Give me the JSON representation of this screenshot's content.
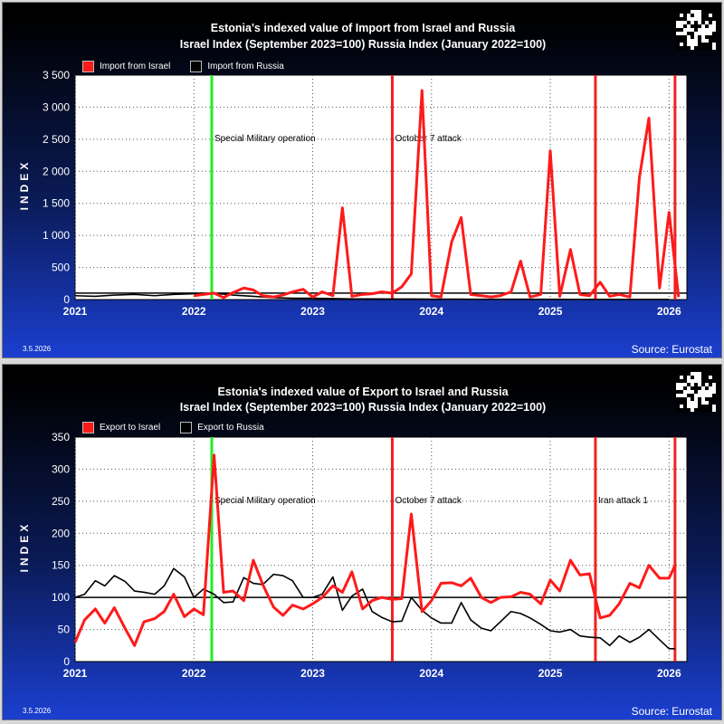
{
  "charts": [
    {
      "title1": "Estonia's indexed value of Import from Israel and Russia",
      "title2": "Israel Index (September 2023=100) Russia Index (January 2022=100)",
      "legend": [
        "Import from Israel",
        "Import from Russia"
      ],
      "ylabel": "INDEX",
      "date": "3.5.2026",
      "source": "Source: Eurostat"
    },
    {
      "title1": "Estonia's indexed value of Export to Israel and Russia",
      "title2": "Israel Index (September 2023=100) Russia Index (January 2022=100)",
      "legend": [
        "Export to Israel",
        "Export to Russia"
      ],
      "ylabel": "INDEX",
      "date": "3.5.2026",
      "source": "Source: Eurostat"
    }
  ],
  "chart_data": [
    {
      "type": "line",
      "title": "Estonia's indexed value of Import from Israel and Russia",
      "ylabel": "INDEX",
      "xlim": [
        2021.0,
        2026.15
      ],
      "ylim": [
        0,
        3500
      ],
      "yticks": [
        "0",
        "500",
        "1 000",
        "1 500",
        "2 000",
        "2 500",
        "3 000",
        "3 500"
      ],
      "ytick_values": [
        0,
        500,
        1000,
        1500,
        2000,
        2500,
        3000,
        3500
      ],
      "xticks": [
        "2021",
        "2022",
        "2023",
        "2024",
        "2025",
        "2026"
      ],
      "grid": true,
      "legend": "top-left",
      "reference_line": 100,
      "events": [
        {
          "x": 2022.15,
          "label": "Special Military operation",
          "color": "#22ee22"
        },
        {
          "x": 2023.67,
          "label": "October 7 attack",
          "color": "#ee2222"
        },
        {
          "x": 2025.38,
          "label": "",
          "color": "#ee2222"
        },
        {
          "x": 2026.05,
          "label": "",
          "color": "#ee2222"
        }
      ],
      "series": [
        {
          "name": "Import from Israel",
          "color": "#ff1a1a",
          "x": [
            2022.0,
            2022.08,
            2022.17,
            2022.25,
            2022.33,
            2022.42,
            2022.5,
            2022.58,
            2022.67,
            2022.75,
            2022.83,
            2022.92,
            2023.0,
            2023.08,
            2023.17,
            2023.25,
            2023.33,
            2023.42,
            2023.5,
            2023.58,
            2023.67,
            2023.75,
            2023.83,
            2023.92,
            2024.0,
            2024.08,
            2024.17,
            2024.25,
            2024.33,
            2024.42,
            2024.5,
            2024.58,
            2024.67,
            2024.75,
            2024.83,
            2024.92,
            2025.0,
            2025.08,
            2025.17,
            2025.25,
            2025.33,
            2025.42,
            2025.5,
            2025.58,
            2025.67,
            2025.75,
            2025.83,
            2025.92,
            2026.0,
            2026.08
          ],
          "y": [
            60,
            80,
            100,
            30,
            110,
            180,
            150,
            60,
            40,
            70,
            120,
            160,
            40,
            120,
            60,
            1430,
            50,
            80,
            90,
            120,
            100,
            200,
            400,
            3260,
            60,
            40,
            900,
            1280,
            80,
            60,
            40,
            60,
            120,
            600,
            40,
            80,
            2320,
            50,
            780,
            80,
            60,
            270,
            50,
            80,
            40,
            1900,
            2830,
            180,
            1360,
            40
          ]
        },
        {
          "name": "Import from Russia",
          "color": "#000000",
          "x": [
            2021.0,
            2021.17,
            2021.33,
            2021.5,
            2021.67,
            2021.83,
            2022.0,
            2022.17,
            2022.33,
            2022.5,
            2022.67,
            2022.83,
            2023.0,
            2023.17,
            2023.33,
            2023.5,
            2023.67,
            2023.83,
            2024.0,
            2024.17,
            2024.33,
            2024.5,
            2024.67,
            2024.83,
            2025.0,
            2025.17,
            2025.33,
            2025.5,
            2025.67,
            2025.83,
            2026.0
          ],
          "y": [
            60,
            50,
            70,
            80,
            60,
            80,
            90,
            100,
            70,
            50,
            30,
            20,
            20,
            15,
            10,
            10,
            8,
            8,
            6,
            6,
            5,
            5,
            4,
            4,
            4,
            3,
            3,
            3,
            3,
            2,
            2
          ]
        }
      ]
    },
    {
      "type": "line",
      "title": "Estonia's indexed value of Export to Israel and Russia",
      "ylabel": "INDEX",
      "xlim": [
        2021.0,
        2026.15
      ],
      "ylim": [
        0,
        350
      ],
      "yticks": [
        "0",
        "50",
        "100",
        "150",
        "200",
        "250",
        "300",
        "350"
      ],
      "ytick_values": [
        0,
        50,
        100,
        150,
        200,
        250,
        300,
        350
      ],
      "xticks": [
        "2021",
        "2022",
        "2023",
        "2024",
        "2025",
        "2026"
      ],
      "grid": true,
      "legend": "top-left",
      "reference_line": 100,
      "events": [
        {
          "x": 2022.15,
          "label": "Special Military operation",
          "color": "#22ee22"
        },
        {
          "x": 2023.67,
          "label": "October 7 attack",
          "color": "#ee2222"
        },
        {
          "x": 2025.38,
          "label": "Iran attack 1",
          "color": "#ee2222"
        },
        {
          "x": 2026.05,
          "label": "",
          "color": "#ee2222"
        }
      ],
      "series": [
        {
          "name": "Export to Israel",
          "color": "#ff1a1a",
          "x": [
            2021.0,
            2021.08,
            2021.17,
            2021.25,
            2021.33,
            2021.42,
            2021.5,
            2021.58,
            2021.67,
            2021.75,
            2021.83,
            2021.92,
            2022.0,
            2022.08,
            2022.17,
            2022.25,
            2022.33,
            2022.42,
            2022.5,
            2022.58,
            2022.67,
            2022.75,
            2022.83,
            2022.92,
            2023.0,
            2023.08,
            2023.17,
            2023.25,
            2023.33,
            2023.42,
            2023.5,
            2023.58,
            2023.67,
            2023.75,
            2023.83,
            2023.92,
            2024.0,
            2024.08,
            2024.17,
            2024.25,
            2024.33,
            2024.42,
            2024.5,
            2024.58,
            2024.67,
            2024.75,
            2024.83,
            2024.92,
            2025.0,
            2025.08,
            2025.17,
            2025.25,
            2025.33,
            2025.42,
            2025.5,
            2025.58,
            2025.67,
            2025.75,
            2025.83,
            2025.92,
            2026.0,
            2026.05
          ],
          "y": [
            30,
            65,
            82,
            60,
            84,
            52,
            25,
            62,
            67,
            78,
            105,
            70,
            82,
            73,
            322,
            108,
            110,
            95,
            158,
            120,
            85,
            72,
            88,
            82,
            90,
            100,
            118,
            108,
            140,
            82,
            95,
            100,
            97,
            98,
            230,
            78,
            95,
            122,
            123,
            118,
            130,
            100,
            92,
            100,
            101,
            108,
            105,
            90,
            127,
            110,
            158,
            135,
            137,
            68,
            72,
            90,
            122,
            115,
            150,
            130,
            130,
            150
          ]
        },
        {
          "name": "Export to Russia",
          "color": "#000000",
          "x": [
            2021.0,
            2021.08,
            2021.17,
            2021.25,
            2021.33,
            2021.42,
            2021.5,
            2021.58,
            2021.67,
            2021.75,
            2021.83,
            2021.92,
            2022.0,
            2022.08,
            2022.17,
            2022.25,
            2022.33,
            2022.42,
            2022.5,
            2022.58,
            2022.67,
            2022.75,
            2022.83,
            2022.92,
            2023.0,
            2023.08,
            2023.17,
            2023.25,
            2023.33,
            2023.42,
            2023.5,
            2023.58,
            2023.67,
            2023.75,
            2023.83,
            2023.92,
            2024.0,
            2024.08,
            2024.17,
            2024.25,
            2024.33,
            2024.42,
            2024.5,
            2024.58,
            2024.67,
            2024.75,
            2024.83,
            2024.92,
            2025.0,
            2025.08,
            2025.17,
            2025.25,
            2025.33,
            2025.42,
            2025.5,
            2025.58,
            2025.67,
            2025.75,
            2025.83,
            2025.92,
            2026.0,
            2026.05
          ],
          "y": [
            100,
            105,
            126,
            118,
            134,
            125,
            110,
            108,
            105,
            118,
            145,
            132,
            100,
            113,
            105,
            92,
            93,
            131,
            122,
            120,
            136,
            134,
            126,
            100,
            100,
            105,
            132,
            80,
            102,
            113,
            78,
            69,
            62,
            63,
            100,
            80,
            68,
            60,
            60,
            92,
            65,
            52,
            48,
            62,
            78,
            75,
            68,
            58,
            48,
            46,
            50,
            40,
            38,
            37,
            25,
            40,
            30,
            38,
            50,
            34,
            20,
            20
          ]
        }
      ]
    }
  ]
}
